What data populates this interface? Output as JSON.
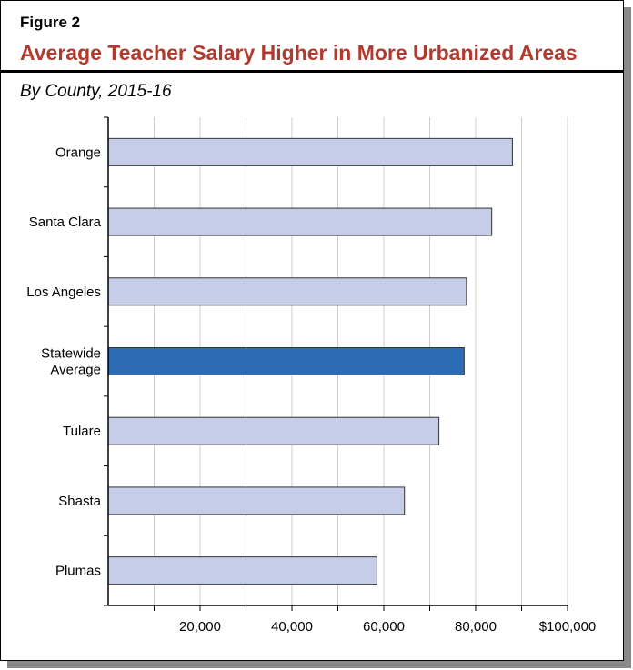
{
  "figure": {
    "label": "Figure 2",
    "title": "Average Teacher Salary Higher in More Urbanized Areas",
    "subtitle": "By County, 2015-16"
  },
  "chart_data": {
    "type": "bar",
    "orientation": "horizontal",
    "categories": [
      "Orange",
      "Santa Clara",
      "Los Angeles",
      "Statewide Average",
      "Tulare",
      "Shasta",
      "Plumas"
    ],
    "category_lines": [
      [
        "Orange"
      ],
      [
        "Santa Clara"
      ],
      [
        "Los Angeles"
      ],
      [
        "Statewide",
        "Average"
      ],
      [
        "Tulare"
      ],
      [
        "Shasta"
      ],
      [
        "Plumas"
      ]
    ],
    "values": [
      88000,
      83500,
      78000,
      77500,
      72000,
      64500,
      58500
    ],
    "highlight": "Statewide Average",
    "xlim": [
      0,
      100000
    ],
    "xticks": [
      20000,
      40000,
      60000,
      80000,
      100000
    ],
    "xtick_labels": [
      "20,000",
      "40,000",
      "60,000",
      "80,000",
      "$100,000"
    ],
    "grid": "vertical",
    "colors": {
      "bar": "#c5cde9",
      "highlight": "#2b6cb5",
      "grid": "#cccccc",
      "axis": "#000000"
    }
  }
}
